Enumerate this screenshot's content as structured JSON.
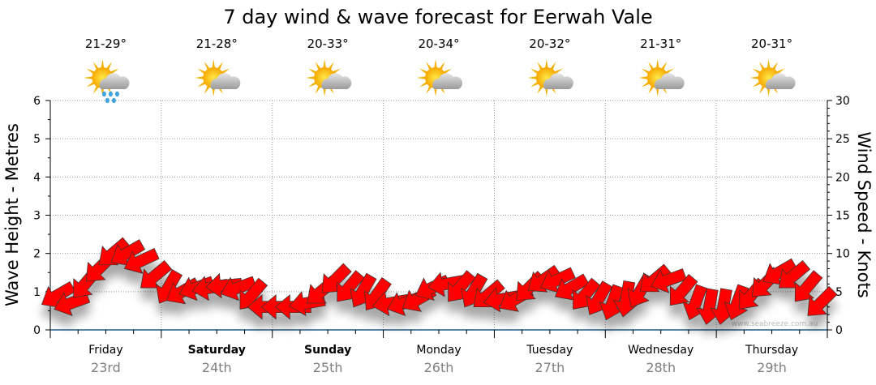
{
  "chart_data": {
    "type": "line",
    "title": "7 day wind & wave forecast for Eerwah Vale",
    "ylabel_left": "Wave Height - Metres",
    "ylabel_right": "Wind Speed - Knots",
    "ylim_left": [
      0,
      6
    ],
    "ylim_right": [
      0,
      30
    ],
    "yticks_left": [
      "0",
      "1",
      "2",
      "3",
      "4",
      "5",
      "6"
    ],
    "yticks_right": [
      "0",
      "5",
      "10",
      "15",
      "20",
      "25",
      "30"
    ],
    "grid": true,
    "days": [
      {
        "name": "Friday",
        "date": "23rd",
        "temp": "21-29°",
        "icon": "sun-cloud-rain-icon",
        "bold": false
      },
      {
        "name": "Saturday",
        "date": "24th",
        "temp": "21-28°",
        "icon": "sun-cloud-icon",
        "bold": true
      },
      {
        "name": "Sunday",
        "date": "25th",
        "temp": "20-33°",
        "icon": "sun-cloud-icon",
        "bold": true
      },
      {
        "name": "Monday",
        "date": "26th",
        "temp": "20-34°",
        "icon": "sun-cloud-icon",
        "bold": false
      },
      {
        "name": "Tuesday",
        "date": "27th",
        "temp": "20-32°",
        "icon": "sun-cloud-icon",
        "bold": false
      },
      {
        "name": "Wednesday",
        "date": "28th",
        "temp": "21-31°",
        "icon": "sun-cloud-icon",
        "bold": false
      },
      {
        "name": "Thursday",
        "date": "29th",
        "temp": "20-31°",
        "icon": "sun-cloud-icon",
        "bold": false
      }
    ],
    "series": [
      {
        "name": "Wind Speed (knots)",
        "values": [
          4.5,
          3.5,
          6,
          8,
          10,
          10,
          9,
          7,
          5.5,
          5,
          5.5,
          5.5,
          5.8,
          5.5,
          4.5,
          3,
          3,
          3,
          3.5,
          5,
          6.5,
          5.5,
          5,
          4.5,
          3.5,
          3.5,
          4,
          5.5,
          6,
          5.5,
          5,
          4.5,
          4,
          4,
          5.5,
          6.5,
          6.5,
          5.5,
          4.5,
          4,
          3.5,
          4,
          5,
          6.5,
          6.5,
          5,
          3.5,
          3,
          3,
          3.5,
          4.5,
          6,
          7.5,
          7,
          5.5,
          3.5
        ],
        "direction_deg": [
          120,
          110,
          140,
          135,
          130,
          120,
          115,
          130,
          150,
          120,
          110,
          100,
          95,
          110,
          140,
          90,
          90,
          90,
          100,
          130,
          135,
          140,
          150,
          145,
          100,
          110,
          120,
          115,
          100,
          140,
          150,
          130,
          100,
          120,
          135,
          125,
          115,
          120,
          140,
          150,
          160,
          170,
          150,
          130,
          110,
          140,
          160,
          170,
          170,
          160,
          140,
          135,
          120,
          130,
          140,
          135
        ]
      }
    ],
    "colors": {
      "arrow": "#ff0000",
      "arrow_stroke": "#333333",
      "axis": "#1f5a85"
    },
    "watermark": "www.seabreeze.com.au"
  }
}
